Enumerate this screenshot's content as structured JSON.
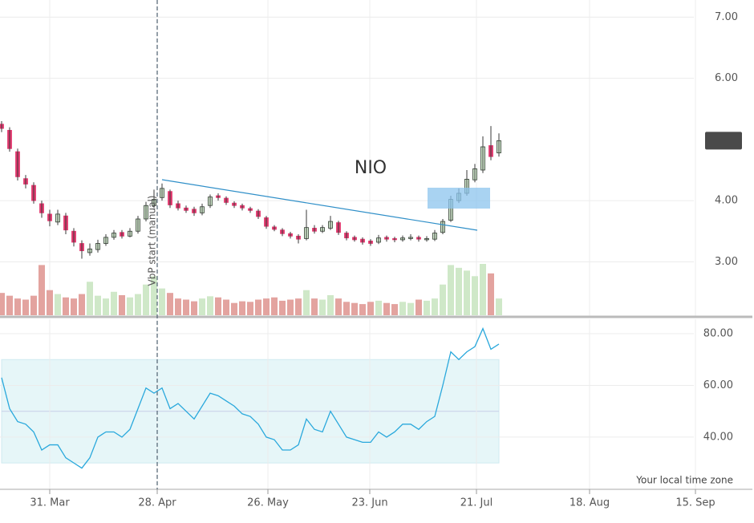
{
  "chart_data": [
    {
      "type": "candlestick",
      "title": "NIO",
      "annotations": [
        "VbP start (manual)"
      ],
      "up_color": "#d4ecd0",
      "down_color": "#e2386e",
      "volume_up_color": "#cfe8c8",
      "volume_down_color": "#e3a39f",
      "grid": true,
      "xlim": [
        -0.2,
        93.6
      ],
      "xticks": [
        6,
        19.4,
        33.2,
        45.9,
        59.2,
        73.3,
        86.5
      ],
      "ylim": [
        2.1,
        7.28
      ],
      "yticks": [
        {
          "value": 3,
          "label": "3.00"
        },
        {
          "value": 4,
          "label": "4.00"
        },
        {
          "value": 6,
          "label": "6.00"
        },
        {
          "value": 7,
          "label": "7.00"
        }
      ],
      "open": [
        5.25,
        5.15,
        4.8,
        4.36,
        4.25,
        3.95,
        3.78,
        3.65,
        3.75,
        3.5,
        3.3,
        3.15,
        3.2,
        3.3,
        3.4,
        3.48,
        3.42,
        3.5,
        3.7,
        3.92,
        4.05,
        4.15,
        3.95,
        3.88,
        3.86,
        3.8,
        3.92,
        4.08,
        4.04,
        3.96,
        3.92,
        3.87,
        3.83,
        3.72,
        3.57,
        3.52,
        3.46,
        3.42,
        3.38,
        3.55,
        3.5,
        3.55,
        3.64,
        3.47,
        3.4,
        3.37,
        3.34,
        3.32,
        3.4,
        3.38,
        3.36,
        3.38,
        3.4,
        3.36,
        3.37,
        3.48,
        3.68,
        4.0,
        4.12,
        4.34,
        4.5,
        4.9,
        4.78
      ],
      "high": [
        5.3,
        5.2,
        4.85,
        4.42,
        4.3,
        4.0,
        3.85,
        3.85,
        3.8,
        3.55,
        3.35,
        3.3,
        3.36,
        3.45,
        3.52,
        3.52,
        3.55,
        3.75,
        3.98,
        4.18,
        4.28,
        4.18,
        4.0,
        3.92,
        3.9,
        3.95,
        4.1,
        4.12,
        4.07,
        3.99,
        3.95,
        3.9,
        3.86,
        3.75,
        3.6,
        3.55,
        3.49,
        3.45,
        3.85,
        3.6,
        3.6,
        3.75,
        3.67,
        3.5,
        3.43,
        3.4,
        3.37,
        3.44,
        3.43,
        3.41,
        3.43,
        3.45,
        3.43,
        3.42,
        3.52,
        3.7,
        4.08,
        4.2,
        4.5,
        4.6,
        5.05,
        5.22,
        5.1
      ],
      "low": [
        5.12,
        4.8,
        4.33,
        4.2,
        3.95,
        3.72,
        3.58,
        3.6,
        3.45,
        3.25,
        3.05,
        3.1,
        3.15,
        3.26,
        3.36,
        3.38,
        3.4,
        3.46,
        3.66,
        3.88,
        4.0,
        3.88,
        3.84,
        3.8,
        3.75,
        3.76,
        3.88,
        4.0,
        3.93,
        3.88,
        3.84,
        3.8,
        3.7,
        3.54,
        3.5,
        3.42,
        3.38,
        3.3,
        3.35,
        3.46,
        3.47,
        3.52,
        3.44,
        3.35,
        3.33,
        3.28,
        3.26,
        3.29,
        3.33,
        3.32,
        3.33,
        3.35,
        3.33,
        3.33,
        3.34,
        3.45,
        3.65,
        3.96,
        4.08,
        4.3,
        4.45,
        4.66,
        4.72
      ],
      "close": [
        5.18,
        4.85,
        4.39,
        4.27,
        4.0,
        3.8,
        3.67,
        3.78,
        3.52,
        3.32,
        3.18,
        3.21,
        3.3,
        3.4,
        3.47,
        3.42,
        3.5,
        3.7,
        3.92,
        4.02,
        4.2,
        3.93,
        3.88,
        3.84,
        3.8,
        3.9,
        4.06,
        4.05,
        3.97,
        3.92,
        3.88,
        3.84,
        3.74,
        3.58,
        3.53,
        3.46,
        3.42,
        3.37,
        3.56,
        3.5,
        3.56,
        3.66,
        3.48,
        3.39,
        3.36,
        3.32,
        3.3,
        3.39,
        3.37,
        3.36,
        3.39,
        3.4,
        3.37,
        3.38,
        3.47,
        3.66,
        4.02,
        4.12,
        4.35,
        4.52,
        4.88,
        4.72,
        4.98
      ],
      "volume": [
        40,
        35,
        30,
        28,
        35,
        90,
        45,
        38,
        32,
        30,
        38,
        60,
        35,
        30,
        42,
        36,
        32,
        38,
        55,
        70,
        48,
        40,
        30,
        28,
        25,
        30,
        34,
        32,
        28,
        22,
        25,
        24,
        28,
        30,
        32,
        26,
        28,
        30,
        45,
        30,
        28,
        36,
        30,
        24,
        22,
        20,
        24,
        26,
        22,
        20,
        24,
        22,
        28,
        26,
        30,
        55,
        90,
        85,
        80,
        70,
        92,
        75,
        30
      ]
    },
    {
      "type": "line",
      "annotations": [
        "Your local time zone"
      ],
      "color": "#29a8dc",
      "band": [
        30,
        70
      ],
      "midline": 50,
      "grid": true,
      "xlim": [
        -0.2,
        93.6
      ],
      "xticks": [
        {
          "value": 6,
          "label": "31. Mar"
        },
        {
          "value": 19.4,
          "label": "28. Apr"
        },
        {
          "value": 33.2,
          "label": "26. May"
        },
        {
          "value": 45.9,
          "label": "23. Jun"
        },
        {
          "value": 59.2,
          "label": "21. Jul"
        },
        {
          "value": 73.3,
          "label": "18. Aug"
        },
        {
          "value": 86.5,
          "label": "15. Sep"
        }
      ],
      "ylim": [
        19.8,
        85.6
      ],
      "yticks": [
        {
          "value": 40,
          "label": "40.00"
        },
        {
          "value": 60,
          "label": "60.00"
        },
        {
          "value": 80,
          "label": "80.00"
        }
      ],
      "values": [
        63,
        51,
        46,
        45,
        42,
        35,
        37,
        37,
        32,
        30,
        28,
        32,
        40,
        42,
        42,
        40,
        43,
        51,
        59,
        57,
        59,
        51,
        53,
        50,
        47,
        52,
        57,
        56,
        54,
        52,
        49,
        48,
        45,
        40,
        39,
        35,
        35,
        37,
        47,
        43,
        42,
        50,
        45,
        40,
        39,
        38,
        38,
        42,
        40,
        42,
        45,
        45,
        43,
        46,
        48,
        60,
        73,
        70,
        73,
        75,
        82,
        74,
        76
      ]
    }
  ]
}
